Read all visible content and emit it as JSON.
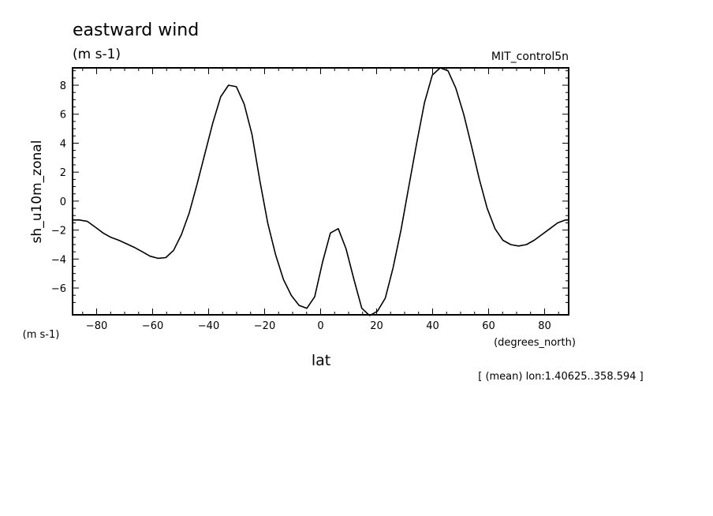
{
  "chart_data": {
    "type": "line",
    "title": "eastward wind",
    "subtitle": "(m s-1)",
    "dataset_label": "MIT_control5n",
    "ylabel": "sh_u10m_zonal",
    "yunits": "(m s-1)",
    "xlabel": "lat",
    "xunits": "(degrees_north)",
    "footnote": "[ (mean) lon:1.40625..358.594 ]",
    "xlim": [
      -88.6,
      88.6
    ],
    "ylim": [
      -7.85,
      9.2
    ],
    "x_ticks": [
      -80,
      -60,
      -40,
      -20,
      0,
      20,
      40,
      60,
      80
    ],
    "y_ticks": [
      -6,
      -4,
      -2,
      0,
      2,
      4,
      6,
      8
    ],
    "grid": false,
    "series": [
      {
        "x": [
          -88.6,
          -86.2,
          -83.3,
          -80.5,
          -77.7,
          -74.9,
          -72.1,
          -69.3,
          -66.5,
          -63.7,
          -60.9,
          -58.1,
          -55.3,
          -52.5,
          -49.7,
          -46.9,
          -44.1,
          -41.3,
          -38.5,
          -35.7,
          -32.9,
          -30.1,
          -27.3,
          -24.5,
          -21.7,
          -18.9,
          -16.1,
          -13.3,
          -10.5,
          -7.7,
          -4.9,
          -2.1,
          0.7,
          3.5,
          6.3,
          9.1,
          11.9,
          14.7,
          17.5,
          20.3,
          23.1,
          25.9,
          28.7,
          31.5,
          34.3,
          37.1,
          39.9,
          42.7,
          45.5,
          48.3,
          51.1,
          53.9,
          56.7,
          59.5,
          62.3,
          65.1,
          67.9,
          70.7,
          73.5,
          76.3,
          79.1,
          81.9,
          84.7,
          87.5,
          88.6
        ],
        "values": [
          -1.3,
          -1.3,
          -1.4,
          -1.8,
          -2.2,
          -2.5,
          -2.7,
          -2.95,
          -3.2,
          -3.5,
          -3.8,
          -3.95,
          -3.9,
          -3.4,
          -2.3,
          -0.8,
          1.2,
          3.3,
          5.4,
          7.2,
          8.0,
          7.9,
          6.7,
          4.6,
          1.4,
          -1.5,
          -3.7,
          -5.4,
          -6.5,
          -7.2,
          -7.4,
          -6.6,
          -4.2,
          -2.2,
          -1.9,
          -3.3,
          -5.4,
          -7.4,
          -7.9,
          -7.6,
          -6.7,
          -4.6,
          -2.0,
          1.0,
          4.0,
          6.8,
          8.7,
          9.2,
          9.0,
          7.8,
          6.0,
          3.8,
          1.5,
          -0.5,
          -1.9,
          -2.7,
          -3.0,
          -3.1,
          -3.0,
          -2.7,
          -2.3,
          -1.9,
          -1.5,
          -1.3,
          -1.3
        ]
      }
    ]
  }
}
